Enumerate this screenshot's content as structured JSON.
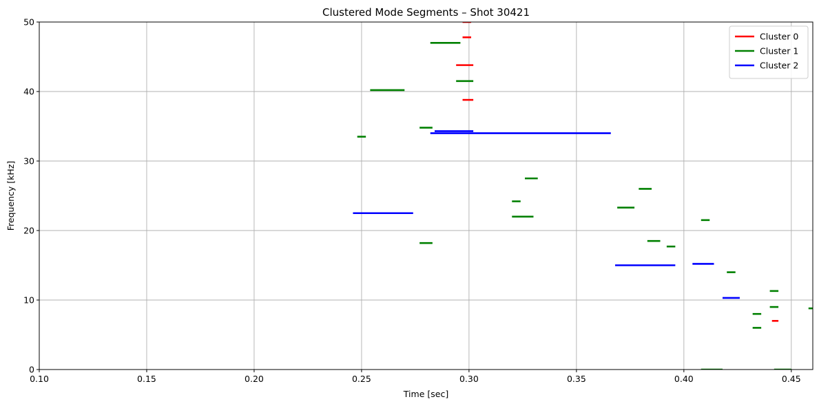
{
  "chart_data": {
    "type": "line",
    "title": "Clustered Mode Segments – Shot 30421",
    "xlabel": "Time [sec]",
    "ylabel": "Frequency [kHz]",
    "xlim": [
      0.1,
      0.46
    ],
    "ylim": [
      0,
      50
    ],
    "xticks": [
      0.1,
      0.15,
      0.2,
      0.25,
      0.3,
      0.35,
      0.4,
      0.45
    ],
    "xtick_labels": [
      "0.10",
      "0.15",
      "0.20",
      "0.25",
      "0.30",
      "0.35",
      "0.40",
      "0.45"
    ],
    "yticks": [
      0,
      10,
      20,
      30,
      40,
      50
    ],
    "ytick_labels": [
      "0",
      "10",
      "20",
      "30",
      "40",
      "50"
    ],
    "grid": true,
    "legend": "top-right",
    "series": [
      {
        "name": "Cluster 0",
        "color": "#ff0000",
        "segments": [
          {
            "x": [
              0.297,
              0.301
            ],
            "y": 50.0
          },
          {
            "x": [
              0.297,
              0.301
            ],
            "y": 47.8
          },
          {
            "x": [
              0.294,
              0.302
            ],
            "y": 43.8
          },
          {
            "x": [
              0.297,
              0.302
            ],
            "y": 38.8
          },
          {
            "x": [
              0.441,
              0.444
            ],
            "y": 7.0
          }
        ]
      },
      {
        "name": "Cluster 1",
        "color": "#008000",
        "segments": [
          {
            "x": [
              0.282,
              0.296
            ],
            "y": 47.0
          },
          {
            "x": [
              0.294,
              0.302
            ],
            "y": 41.5
          },
          {
            "x": [
              0.254,
              0.27
            ],
            "y": 40.2
          },
          {
            "x": [
              0.277,
              0.283
            ],
            "y": 34.8
          },
          {
            "x": [
              0.248,
              0.252
            ],
            "y": 33.5
          },
          {
            "x": [
              0.326,
              0.332
            ],
            "y": 27.5
          },
          {
            "x": [
              0.379,
              0.385
            ],
            "y": 26.0
          },
          {
            "x": [
              0.32,
              0.324
            ],
            "y": 24.2
          },
          {
            "x": [
              0.369,
              0.377
            ],
            "y": 23.3
          },
          {
            "x": [
              0.32,
              0.33
            ],
            "y": 22.0
          },
          {
            "x": [
              0.408,
              0.412
            ],
            "y": 21.5
          },
          {
            "x": [
              0.383,
              0.389
            ],
            "y": 18.5
          },
          {
            "x": [
              0.277,
              0.283
            ],
            "y": 18.2
          },
          {
            "x": [
              0.392,
              0.396
            ],
            "y": 17.7
          },
          {
            "x": [
              0.42,
              0.424
            ],
            "y": 14.0
          },
          {
            "x": [
              0.44,
              0.444
            ],
            "y": 11.3
          },
          {
            "x": [
              0.44,
              0.444
            ],
            "y": 9.0
          },
          {
            "x": [
              0.458,
              0.462
            ],
            "y": 8.8
          },
          {
            "x": [
              0.432,
              0.436
            ],
            "y": 8.0
          },
          {
            "x": [
              0.432,
              0.436
            ],
            "y": 6.0
          },
          {
            "x": [
              0.408,
              0.418
            ],
            "y": 0.0
          },
          {
            "x": [
              0.442,
              0.45
            ],
            "y": 0.0
          }
        ]
      },
      {
        "name": "Cluster 2",
        "color": "#0000ff",
        "segments": [
          {
            "x": [
              0.284,
              0.302
            ],
            "y": 34.3
          },
          {
            "x": [
              0.282,
              0.366
            ],
            "y": 34.0
          },
          {
            "x": [
              0.246,
              0.274
            ],
            "y": 22.5
          },
          {
            "x": [
              0.368,
              0.396
            ],
            "y": 15.0
          },
          {
            "x": [
              0.404,
              0.414
            ],
            "y": 15.2
          },
          {
            "x": [
              0.418,
              0.426
            ],
            "y": 10.3
          }
        ]
      }
    ]
  }
}
